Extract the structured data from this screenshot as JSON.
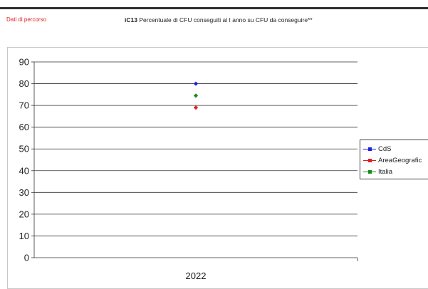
{
  "header": {
    "section_label": "Dati di percorso",
    "title_code": "iC13",
    "title_text": "Percentuale di CFU conseguiti al I anno su CFU da conseguire**"
  },
  "chart_data": {
    "type": "line",
    "categories": [
      "2022"
    ],
    "series": [
      {
        "name": "CdS",
        "color": "#1f1fe0",
        "values": [
          80
        ]
      },
      {
        "name": "AreaGeografica",
        "color": "#e02020",
        "values": [
          69
        ]
      },
      {
        "name": "Italia",
        "color": "#1a8a1a",
        "values": [
          74.5
        ]
      }
    ],
    "ylim": [
      0,
      90
    ],
    "yticks": [
      0,
      10,
      20,
      30,
      40,
      50,
      60,
      70,
      80,
      90
    ],
    "grid": true,
    "legend_position": "right",
    "legend_labels": [
      "CdS",
      "AreaGeografic",
      "Italia"
    ]
  }
}
